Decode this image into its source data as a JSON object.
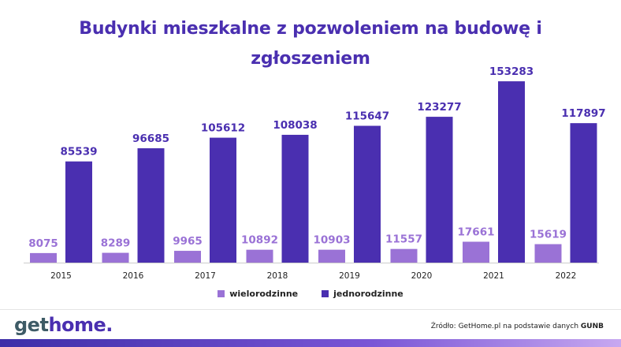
{
  "title": "Budynki mieszkalne z pozwoleniem na budowę i zgłoszeniem",
  "legend": [
    {
      "label": "wielorodzinne",
      "color": "#9a72d6"
    },
    {
      "label": "jednorodzinne",
      "color": "#4a2fb0"
    }
  ],
  "logo": {
    "part1": "get",
    "part2": "home."
  },
  "source": {
    "text": "Źródło: GetHome.pl na podstawie danych ",
    "highlight": "GUNB"
  },
  "chart_data": {
    "type": "bar",
    "title": "Budynki mieszkalne z pozwoleniem na budowę i zgłoszeniem",
    "xlabel": "",
    "ylabel": "",
    "categories": [
      "2015",
      "2016",
      "2017",
      "2018",
      "2019",
      "2020",
      "2021",
      "2022"
    ],
    "ylim": [
      0,
      160000
    ],
    "grid": false,
    "legend_position": "bottom",
    "series": [
      {
        "name": "wielorodzinne",
        "color": "#9a72d6",
        "values": [
          8075,
          8289,
          9965,
          10892,
          10903,
          11557,
          17661,
          15619
        ]
      },
      {
        "name": "jednorodzinne",
        "color": "#4a2fb0",
        "values": [
          85539,
          96685,
          105612,
          108038,
          115647,
          123277,
          153283,
          117897
        ]
      }
    ]
  }
}
